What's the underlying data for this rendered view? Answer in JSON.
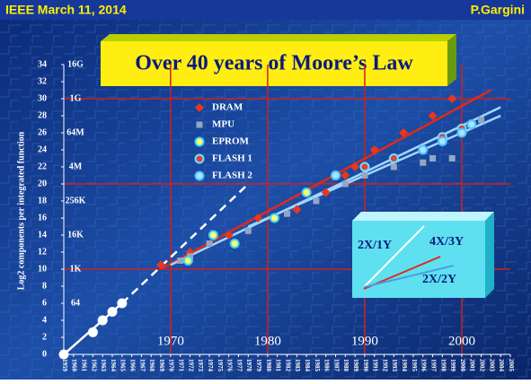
{
  "header": {
    "left": "IEEE March 11, 2014",
    "right": "P.Gargini"
  },
  "chart_data": {
    "type": "scatter",
    "title": "Over 40 years of Moore’s Law",
    "ylabel": "Log2 components per integrated function",
    "xlim": [
      1959,
      2005
    ],
    "ylim": [
      0,
      34
    ],
    "xticks": [
      1959,
      1960,
      1961,
      1962,
      1963,
      1964,
      1965,
      1966,
      1967,
      1968,
      1969,
      1970,
      1971,
      1972,
      1973,
      1974,
      1975,
      1976,
      1977,
      1978,
      1979,
      1980,
      1981,
      1982,
      1983,
      1984,
      1985,
      1986,
      1987,
      1988,
      1989,
      1990,
      1991,
      1992,
      1993,
      1994,
      1995,
      1996,
      1997,
      1998,
      1999,
      2000,
      2001,
      2002,
      2003,
      2004,
      2005
    ],
    "major_xticks": [
      1970,
      1980,
      1990,
      2000
    ],
    "yticks": [
      0,
      2,
      4,
      6,
      8,
      10,
      12,
      14,
      16,
      18,
      20,
      22,
      24,
      26,
      28,
      30,
      32,
      34
    ],
    "ygrid": [
      10,
      20,
      30
    ],
    "memory_ticks": [
      {
        "value": 6,
        "label": "64"
      },
      {
        "value": 10,
        "label": "1K"
      },
      {
        "value": 14,
        "label": "16K"
      },
      {
        "value": 18,
        "label": "256K"
      },
      {
        "value": 22,
        "label": "4M"
      },
      {
        "value": 26,
        "label": "64M"
      },
      {
        "value": 30,
        "label": "1G"
      },
      {
        "value": 34,
        "label": "16G"
      }
    ],
    "series": [
      {
        "marker": "circle",
        "color": "#ffffff",
        "edge": "#ffffff",
        "x": [
          1959,
          1962,
          1963,
          1964,
          1965
        ],
        "values": [
          0,
          2.6,
          4,
          5,
          6
        ]
      },
      {
        "name": "DRAM",
        "marker": "diamond",
        "color": "#e8361f",
        "edge": "#e8361f",
        "x": [
          1969,
          1972,
          1976,
          1979,
          1983,
          1986,
          1988,
          1989,
          1991,
          1994,
          1997,
          1999
        ],
        "values": [
          10.5,
          12,
          14,
          16,
          17,
          19,
          21,
          22,
          24,
          26,
          28,
          30
        ]
      },
      {
        "name": "MPU",
        "marker": "square",
        "color": "#93a6c4",
        "edge": "#93a6c4",
        "x": [
          1971,
          1972,
          1974,
          1978,
          1982,
          1985,
          1988,
          1990,
          1993,
          1996,
          1997,
          1999,
          2002
        ],
        "values": [
          11,
          11.5,
          13,
          14.5,
          16.5,
          18,
          20,
          21,
          22,
          22.5,
          23,
          23,
          27.5
        ]
      },
      {
        "name": "EPROM",
        "marker": "circle",
        "color": "#ffff66",
        "edge": "#40d0ff",
        "x": [
          1971.8,
          1974.4,
          1976.6,
          1980.7,
          1984
        ],
        "values": [
          11,
          14,
          13,
          16,
          19
        ]
      },
      {
        "name": "FLASH 1",
        "marker": "circle",
        "color": "#e04040",
        "edge": "#70e0ff",
        "x": [
          1987,
          1990,
          1993,
          1998,
          2000
        ],
        "values": [
          21,
          22,
          23,
          25.5,
          26.5
        ]
      },
      {
        "name": "FLASH 2",
        "marker": "circle",
        "color": "#a8e4ff",
        "edge": "#50c0ff",
        "x": [
          1987,
          1996,
          1998,
          2000,
          2001
        ],
        "values": [
          21,
          24,
          25,
          26,
          27
        ]
      }
    ],
    "trend_lines": [
      {
        "color": "#ffffff",
        "dash": false,
        "x": [
          1959,
          1965
        ],
        "values": [
          0,
          6
        ]
      },
      {
        "color": "#ffffff",
        "dash": true,
        "x": [
          1965,
          1978
        ],
        "values": [
          6,
          20
        ]
      },
      {
        "color": "#e02a1a",
        "dash": false,
        "x": [
          1969,
          2003
        ],
        "values": [
          10,
          31
        ]
      },
      {
        "color": "#9fd8ff",
        "dash": false,
        "x": [
          1970,
          2004
        ],
        "values": [
          10.5,
          29
        ]
      },
      {
        "color": "#9fd8ff",
        "dash": false,
        "x": [
          1978,
          2004
        ],
        "values": [
          15,
          28
        ]
      }
    ],
    "inset": {
      "a": "2X/1Y",
      "b": "4X/3Y",
      "c": "2X/2Y"
    }
  }
}
